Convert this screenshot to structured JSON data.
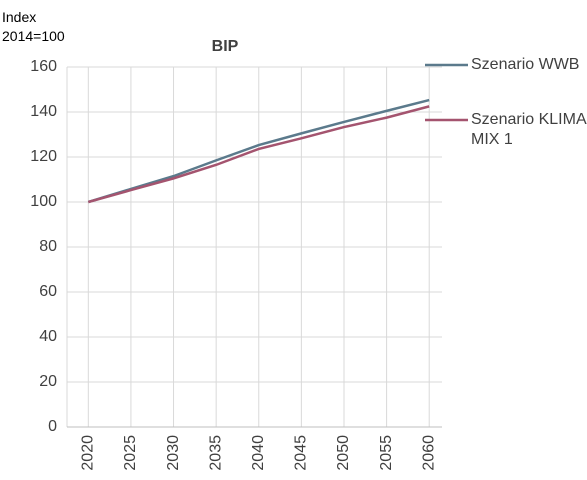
{
  "chart_data": {
    "type": "line",
    "title": "BIP",
    "y_label": "Index 2014=100",
    "x": [
      2020,
      2025,
      2030,
      2035,
      2040,
      2045,
      2050,
      2055,
      2060
    ],
    "series": [
      {
        "name": "Szenario WWB",
        "color": "#5b7a8c",
        "values": [
          100,
          105.8,
          111.5,
          118.5,
          125.3,
          130.5,
          135.6,
          140.5,
          145.3
        ]
      },
      {
        "name": "Szenario KLIMA MIX 1",
        "color": "#a4546f",
        "values": [
          100,
          105.3,
          110.5,
          116.5,
          123.6,
          128.3,
          133.3,
          137.5,
          142.5
        ]
      }
    ],
    "xlim": [
      2017.5,
      2061.5
    ],
    "xticks": [
      2020,
      2025,
      2030,
      2035,
      2040,
      2045,
      2050,
      2055,
      2060
    ],
    "ylim": [
      0,
      160
    ],
    "yticks": [
      0,
      20,
      40,
      60,
      80,
      100,
      120,
      140,
      160
    ],
    "grid": true
  }
}
